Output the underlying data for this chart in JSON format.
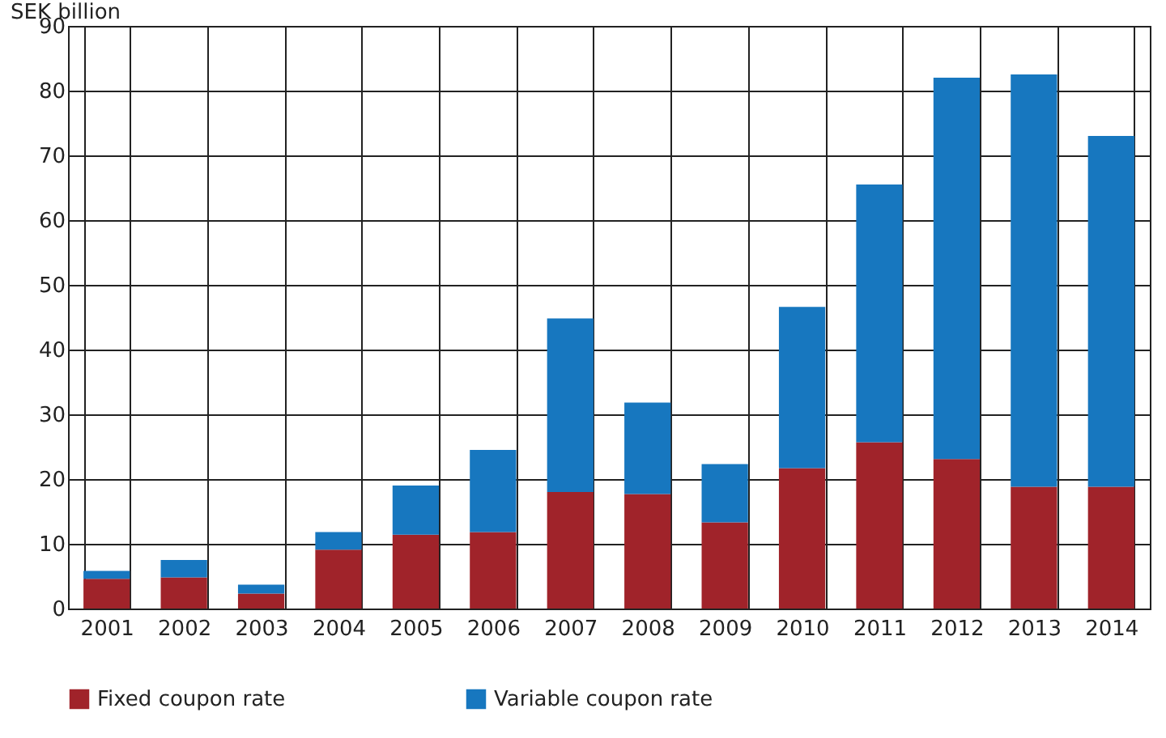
{
  "chart_data": {
    "type": "bar",
    "stacked": true,
    "ylabel": "SEK billion",
    "categories": [
      "2001",
      "2002",
      "2003",
      "2004",
      "2005",
      "2006",
      "2007",
      "2008",
      "2009",
      "2010",
      "2011",
      "2012",
      "2013",
      "2014"
    ],
    "series": [
      {
        "name": "Fixed coupon rate",
        "color": "#a0232a",
        "values": [
          4.6,
          4.8,
          2.3,
          9.1,
          11.4,
          11.8,
          18.0,
          17.7,
          13.3,
          21.7,
          25.7,
          23.1,
          18.8,
          18.8
        ]
      },
      {
        "name": "Variable coupon rate",
        "color": "#1777bf",
        "values": [
          1.2,
          2.7,
          1.4,
          2.7,
          7.6,
          12.7,
          26.8,
          14.1,
          9.0,
          24.9,
          39.8,
          58.9,
          63.7,
          54.2
        ]
      }
    ],
    "ylim": [
      0,
      90
    ],
    "yticks": [
      0,
      10,
      20,
      30,
      40,
      50,
      60,
      70,
      80,
      90
    ],
    "grid": true,
    "legend": "bottom left"
  }
}
